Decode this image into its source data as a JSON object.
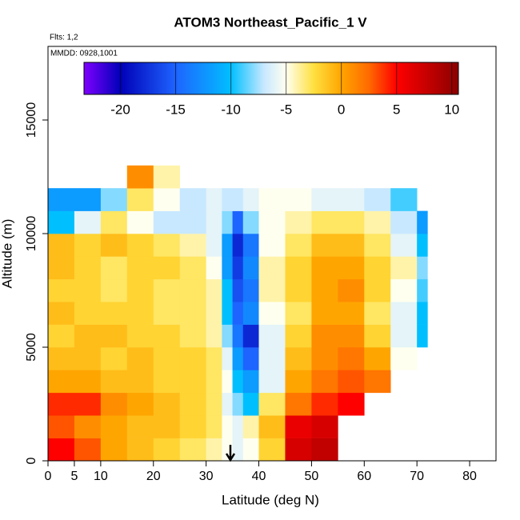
{
  "chart_data": {
    "type": "heatmap",
    "title": "ATOM3 Northeast_Pacific_1 V",
    "subtitle": "Flts: 1,2",
    "annotation": "MMDD: 0928,1001",
    "x_label": "Latitude (deg N)",
    "y_label": "Altitude (m)",
    "xlim": [
      0,
      85
    ],
    "xticks": [
      0,
      5,
      10,
      20,
      30,
      40,
      50,
      60,
      70,
      80
    ],
    "ylim": [
      0,
      18240
    ],
    "yticks": [
      0,
      5000,
      10000,
      15000
    ],
    "colorbar_lim": [
      -23.3,
      10.6
    ],
    "colorbar_ticks": [
      -20,
      -15,
      -10,
      -5,
      0,
      5,
      10
    ],
    "colorscale": [
      [
        -23.3,
        "#7f00ff"
      ],
      [
        -20,
        "#0000b8"
      ],
      [
        -15,
        "#1e64ff"
      ],
      [
        -10,
        "#00bfff"
      ],
      [
        -7,
        "#c8e8ff"
      ],
      [
        -5,
        "#fffff0"
      ],
      [
        -2.5,
        "#ffe040"
      ],
      [
        0,
        "#ffa500"
      ],
      [
        2.5,
        "#ff6a00"
      ],
      [
        5,
        "#ff0000"
      ],
      [
        10.6,
        "#8b0000"
      ]
    ],
    "xbins": [
      0,
      5,
      10,
      15,
      20,
      25,
      30,
      33,
      35,
      37,
      40,
      45,
      50,
      55,
      60,
      65,
      70,
      72
    ],
    "ybins": [
      0,
      1000,
      2000,
      3000,
      4000,
      5000,
      6000,
      7000,
      8000,
      9000,
      10000,
      11000,
      12000,
      13000
    ],
    "z": [
      [
        5,
        3,
        0,
        -1,
        -2,
        -3,
        -4,
        -5,
        -6,
        -5,
        -2,
        7,
        8,
        null,
        null,
        null,
        null
      ],
      [
        3,
        1,
        0,
        -1,
        -1,
        -2,
        -3,
        -5,
        -6,
        -4,
        -1,
        6,
        7,
        null,
        null,
        null,
        null
      ],
      [
        4,
        4,
        1,
        0,
        -1,
        -2,
        -3,
        -6,
        -8,
        -10,
        -3,
        2,
        4,
        5,
        null,
        null,
        null
      ],
      [
        0,
        0,
        -1,
        -1,
        -2,
        -2,
        -3,
        -5,
        -10,
        -12,
        -6,
        0,
        2,
        3,
        2,
        null,
        null
      ],
      [
        -1,
        -1,
        -2,
        -1,
        -2,
        -2,
        -3,
        -6,
        -12,
        -15,
        -6,
        -1,
        1,
        2,
        0,
        -5,
        null
      ],
      [
        -2,
        -1,
        -1,
        -2,
        -2,
        -3,
        -4,
        -8,
        -14,
        -18,
        -6,
        -2,
        1,
        1,
        -2,
        -6,
        -10
      ],
      [
        -1,
        -2,
        -2,
        -2,
        -3,
        -3,
        -4,
        -10,
        -15,
        -13,
        -5,
        -3,
        0,
        0,
        -3,
        -6,
        -10
      ],
      [
        -2,
        -2,
        -3,
        -2,
        -3,
        -3,
        -4,
        -10,
        -16,
        -14,
        -4,
        -2,
        0,
        1,
        -2,
        -5,
        -9
      ],
      [
        -1,
        -2,
        -3,
        -2,
        -2,
        -3,
        -5,
        -12,
        -17,
        -13,
        -4,
        -2,
        0,
        0,
        -2,
        -4,
        -8
      ],
      [
        -1,
        -2,
        -1,
        -2,
        -3,
        -4,
        -6,
        -12,
        -18,
        -14,
        -5,
        -3,
        -1,
        -1,
        -3,
        -6,
        -10
      ],
      [
        -10,
        -6,
        -3,
        -5,
        -7,
        -7,
        -6,
        -8,
        -15,
        -8,
        -5,
        -4,
        -3,
        -3,
        -4,
        -7,
        -12
      ],
      [
        -12,
        -12,
        -8,
        -3,
        -5,
        -7,
        -6,
        -7,
        -7,
        -6,
        -5,
        -5,
        -6,
        -6,
        -7,
        -9,
        null
      ],
      [
        null,
        null,
        null,
        1,
        -4,
        null,
        null,
        null,
        null,
        null,
        null,
        null,
        null,
        null,
        null,
        null,
        null
      ]
    ]
  }
}
